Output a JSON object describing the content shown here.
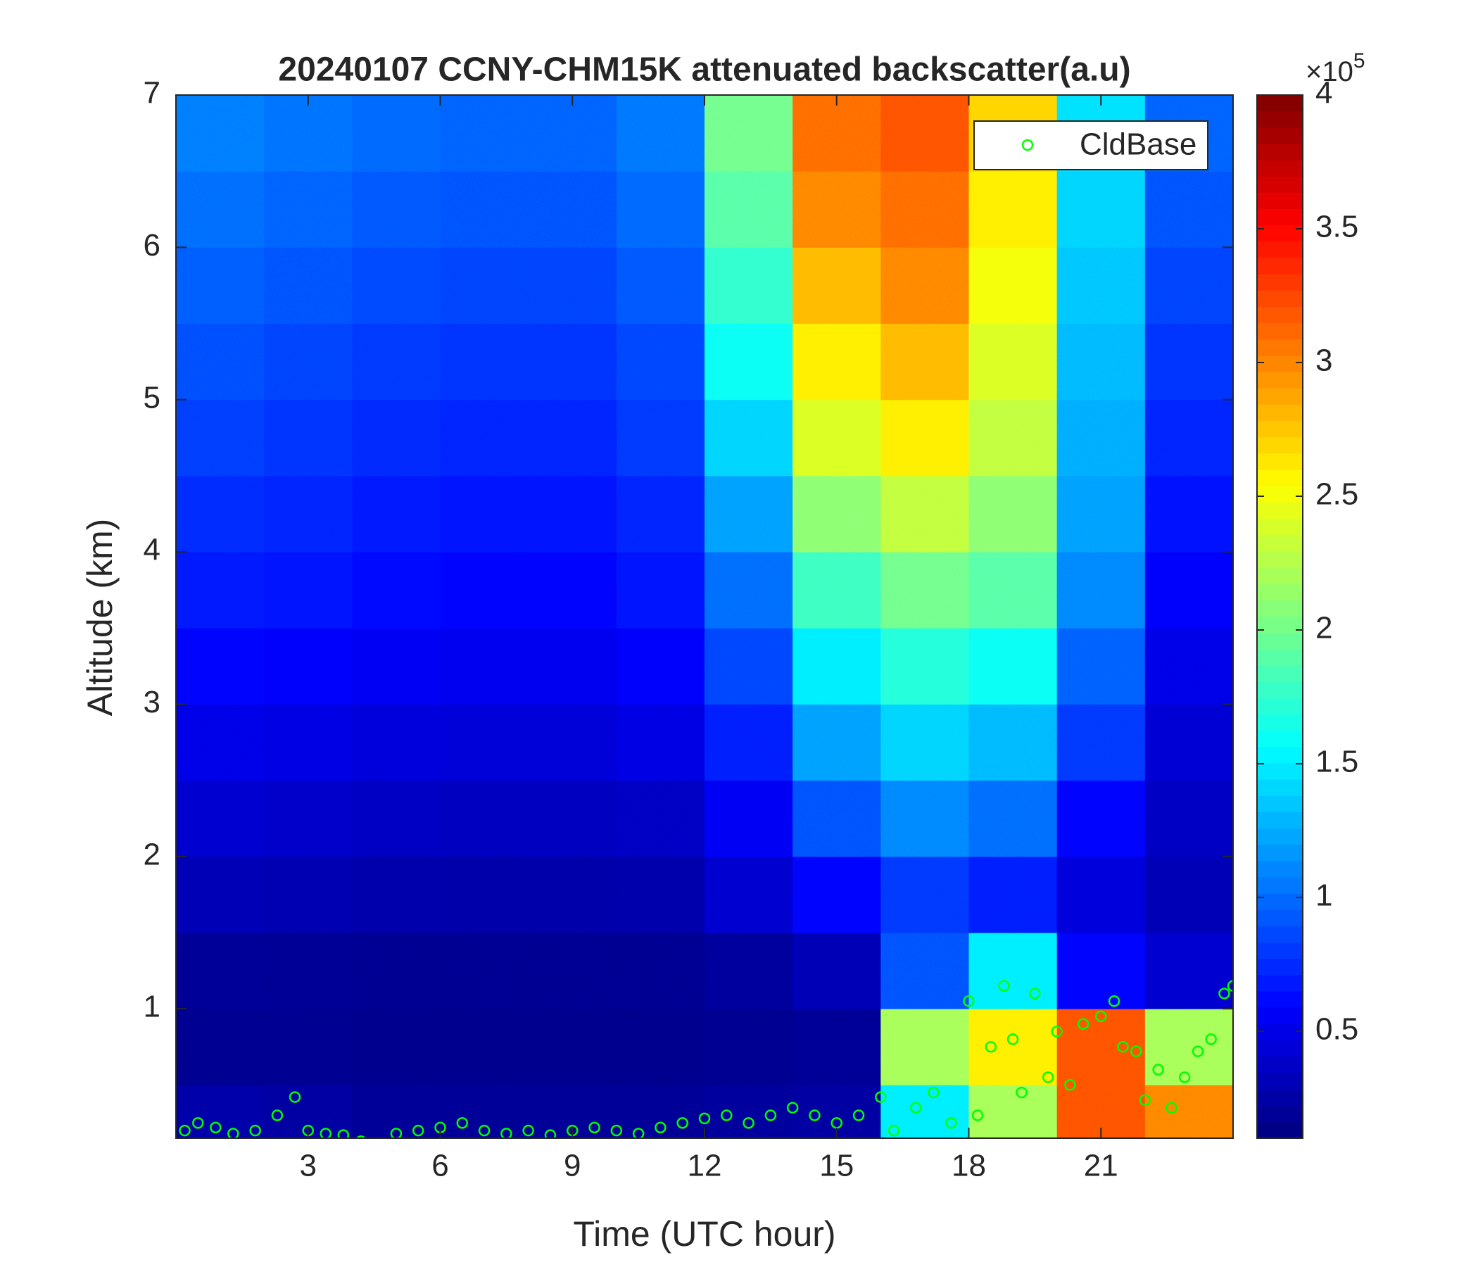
{
  "chart_data": {
    "type": "heatmap",
    "title": "20240107 CCNY-CHM15K attenuated backscatter(a.u)",
    "xlabel": "Time (UTC hour)",
    "ylabel": "Altitude (km)",
    "xlim": [
      0,
      24
    ],
    "ylim": [
      0.15,
      7
    ],
    "xticks": [
      3,
      6,
      9,
      12,
      15,
      18,
      21
    ],
    "yticks": [
      1,
      2,
      3,
      4,
      5,
      6,
      7
    ],
    "x_edges": [
      0,
      2,
      4,
      6,
      8,
      10,
      12,
      14,
      16,
      18,
      20,
      22,
      24
    ],
    "y_edges": [
      0.15,
      0.5,
      1,
      1.5,
      2,
      2.5,
      3,
      3.5,
      4,
      4.5,
      5,
      5.5,
      6,
      6.5,
      7
    ],
    "z": [
      [
        25000,
        22000,
        18000,
        18000,
        18000,
        18000,
        20000,
        22000,
        150000,
        220000,
        320000,
        300000
      ],
      [
        15000,
        15000,
        14000,
        14000,
        14000,
        14000,
        15000,
        18000,
        220000,
        260000,
        320000,
        220000
      ],
      [
        18000,
        17000,
        16000,
        16000,
        16000,
        16000,
        20000,
        30000,
        90000,
        150000,
        60000,
        40000
      ],
      [
        30000,
        28000,
        26000,
        25000,
        25000,
        26000,
        40000,
        60000,
        80000,
        70000,
        45000,
        30000
      ],
      [
        40000,
        38000,
        35000,
        34000,
        34000,
        36000,
        55000,
        90000,
        110000,
        100000,
        60000,
        35000
      ],
      [
        50000,
        48000,
        45000,
        44000,
        44000,
        48000,
        70000,
        120000,
        140000,
        130000,
        80000,
        42000
      ],
      [
        60000,
        58000,
        55000,
        53000,
        53000,
        58000,
        85000,
        150000,
        170000,
        160000,
        95000,
        50000
      ],
      [
        68000,
        66000,
        62000,
        60000,
        60000,
        66000,
        100000,
        180000,
        200000,
        190000,
        110000,
        58000
      ],
      [
        75000,
        72000,
        68000,
        66000,
        66000,
        72000,
        120000,
        210000,
        230000,
        210000,
        120000,
        65000
      ],
      [
        82000,
        78000,
        74000,
        72000,
        72000,
        80000,
        140000,
        240000,
        260000,
        230000,
        125000,
        72000
      ],
      [
        88000,
        84000,
        80000,
        78000,
        78000,
        85000,
        160000,
        260000,
        280000,
        240000,
        130000,
        78000
      ],
      [
        94000,
        90000,
        86000,
        84000,
        84000,
        92000,
        175000,
        280000,
        300000,
        250000,
        135000,
        84000
      ],
      [
        100000,
        96000,
        92000,
        90000,
        90000,
        98000,
        190000,
        300000,
        310000,
        260000,
        140000,
        90000
      ],
      [
        106000,
        102000,
        98000,
        96000,
        96000,
        104000,
        200000,
        310000,
        320000,
        270000,
        145000,
        96000
      ]
    ],
    "colormap": "jet",
    "clim": [
      10000,
      400000
    ],
    "colorbar_ticks": [
      {
        "value": 50000,
        "label": "0.5"
      },
      {
        "value": 100000,
        "label": "1"
      },
      {
        "value": 150000,
        "label": "1.5"
      },
      {
        "value": 200000,
        "label": "2"
      },
      {
        "value": 250000,
        "label": "2.5"
      },
      {
        "value": 300000,
        "label": "3"
      },
      {
        "value": 350000,
        "label": "3.5"
      },
      {
        "value": 400000,
        "label": "4"
      }
    ],
    "colorbar_exponent": {
      "base": "×10",
      "power": "5"
    },
    "legend": "upper right",
    "series": [
      {
        "name": "CldBase",
        "type": "scatter",
        "color": "#00ff00",
        "x": [
          0.2,
          0.5,
          0.9,
          1.3,
          1.8,
          2.3,
          2.7,
          3.0,
          3.4,
          3.8,
          4.2,
          5.0,
          5.5,
          6.0,
          6.5,
          7.0,
          7.5,
          8.0,
          8.5,
          9.0,
          9.5,
          10.0,
          10.5,
          11.0,
          11.5,
          12.0,
          12.5,
          13.0,
          13.5,
          14.0,
          14.5,
          15.0,
          15.5,
          16.0,
          16.3,
          16.8,
          17.2,
          17.6,
          18.0,
          18.2,
          18.5,
          18.8,
          19.0,
          19.2,
          19.5,
          19.8,
          20.0,
          20.3,
          20.6,
          21.0,
          21.3,
          21.5,
          21.8,
          22.0,
          22.3,
          22.6,
          22.9,
          23.2,
          23.5,
          23.8,
          24.0
        ],
        "y": [
          0.2,
          0.25,
          0.22,
          0.18,
          0.2,
          0.3,
          0.42,
          0.2,
          0.18,
          0.17,
          0.13,
          0.18,
          0.2,
          0.22,
          0.25,
          0.2,
          0.18,
          0.2,
          0.17,
          0.2,
          0.22,
          0.2,
          0.18,
          0.22,
          0.25,
          0.28,
          0.3,
          0.25,
          0.3,
          0.35,
          0.3,
          0.25,
          0.3,
          0.42,
          0.2,
          0.35,
          0.45,
          0.25,
          1.05,
          0.3,
          0.75,
          1.15,
          0.8,
          0.45,
          1.1,
          0.55,
          0.85,
          0.5,
          0.9,
          0.95,
          1.05,
          0.75,
          0.72,
          0.4,
          0.6,
          0.35,
          0.55,
          0.72,
          0.8,
          1.1,
          1.15
        ]
      }
    ]
  }
}
